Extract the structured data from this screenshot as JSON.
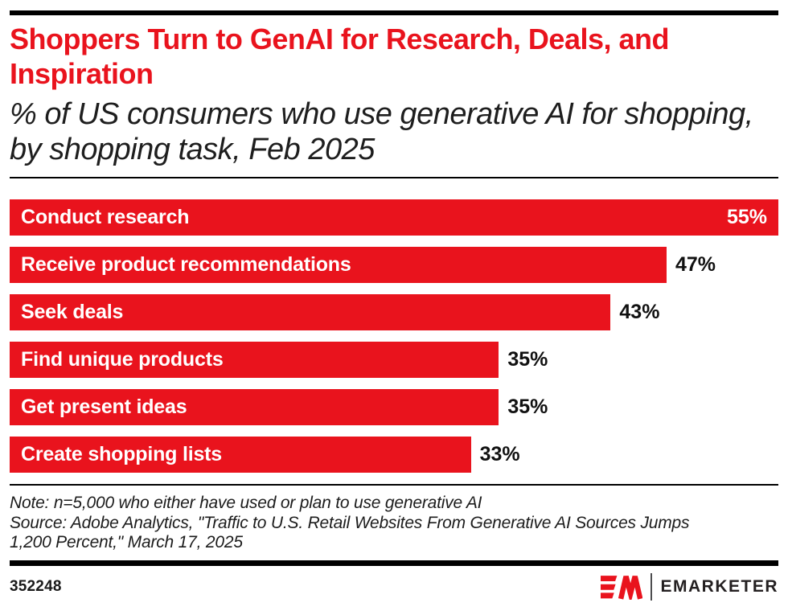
{
  "header": {
    "title": "Shoppers Turn to GenAI for Research, Deals, and Inspiration",
    "subtitle": "% of US consumers who use generative AI for shopping, by shopping task, Feb 2025"
  },
  "chart_data": {
    "type": "bar",
    "orientation": "horizontal",
    "unit": "%",
    "title": "Shoppers Turn to GenAI for Research, Deals, and Inspiration",
    "subtitle": "% of US consumers who use generative AI for shopping, by shopping task, Feb 2025",
    "categories": [
      "Conduct research",
      "Receive product recommendations",
      "Seek deals",
      "Find unique products",
      "Get present ideas",
      "Create shopping lists"
    ],
    "values": [
      55,
      47,
      43,
      35,
      35,
      33
    ],
    "value_labels": [
      "55%",
      "47%",
      "43%",
      "35%",
      "35%",
      "33%"
    ],
    "xlim": [
      0,
      55
    ],
    "grid": false,
    "legend": false,
    "bar_color": "#E9131D",
    "value_label_inside_color": "#FFFFFF",
    "value_label_outside_color": "#111111"
  },
  "footnote": {
    "note": "Note: n=5,000 who either have used or plan to use generative AI",
    "source": "Source: Adobe Analytics, \"Traffic to U.S. Retail Websites From Generative AI Sources Jumps 1,200 Percent,\" March 17, 2025"
  },
  "footer": {
    "chart_id": "352248",
    "brand_name": "EMARKETER"
  },
  "colors": {
    "accent_red": "#E9131D",
    "rule_black": "#000000",
    "text_dark": "#1C1C1C"
  }
}
